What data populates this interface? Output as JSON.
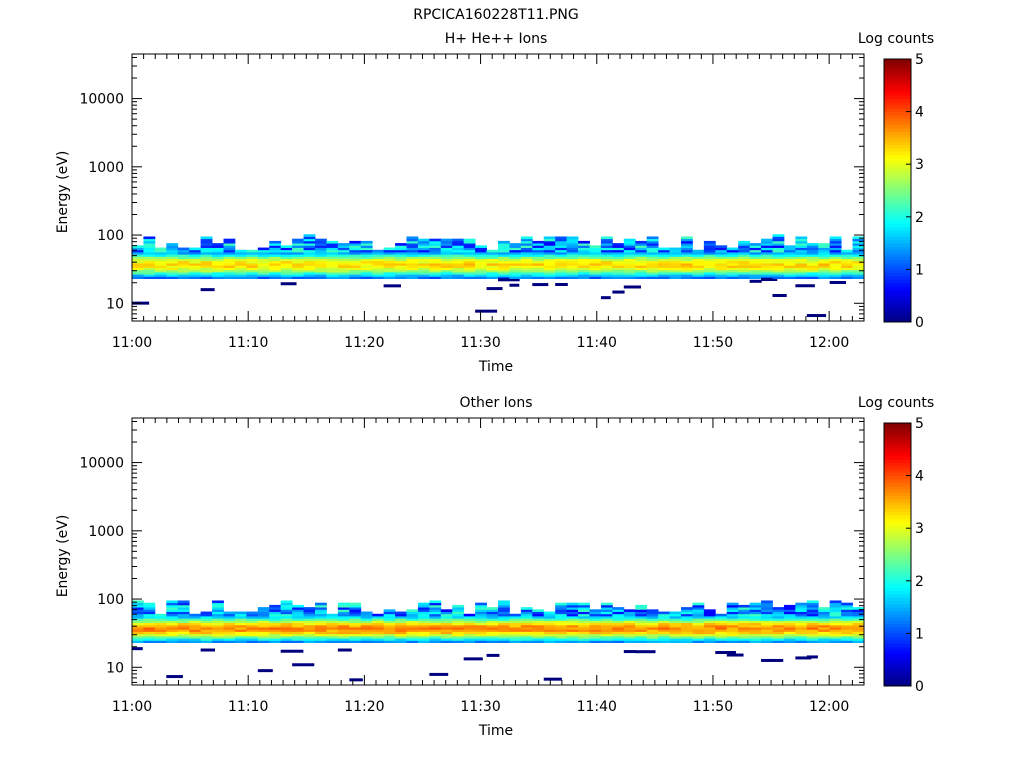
{
  "figure_title": "RPCICA160228T11.PNG",
  "colormap": [
    "#00007f",
    "#0000ff",
    "#007fff",
    "#00ffff",
    "#7fff7f",
    "#ffff00",
    "#ff7f00",
    "#ff0000",
    "#7f0000"
  ],
  "chart_data": [
    {
      "type": "heatmap",
      "title": "H+ He++ Ions",
      "xlabel": "Time",
      "ylabel": "Energy (eV)",
      "x_range": [
        "11:00",
        "12:03"
      ],
      "x_ticks": [
        "11:00",
        "11:10",
        "11:20",
        "11:30",
        "11:40",
        "11:50",
        "12:00"
      ],
      "y_scale": "log",
      "y_range": [
        5.5,
        45000
      ],
      "y_ticks": [
        10,
        100,
        1000,
        10000
      ],
      "y_tick_labels": [
        "10",
        "100",
        "1000",
        "10000"
      ],
      "colorbar": {
        "label": "Log counts",
        "range": [
          0,
          5
        ],
        "ticks": [
          "0",
          "1",
          "2",
          "3",
          "4",
          "5"
        ]
      },
      "band": {
        "peak_energy_eV": 37,
        "peak_log_counts": 3.3,
        "energy_span_eV": [
          23,
          100
        ]
      },
      "sparse_low_energy_counts": true
    },
    {
      "type": "heatmap",
      "title": "Other Ions",
      "xlabel": "Time",
      "ylabel": "Energy (eV)",
      "x_range": [
        "11:00",
        "12:03"
      ],
      "x_ticks": [
        "11:00",
        "11:10",
        "11:20",
        "11:30",
        "11:40",
        "11:50",
        "12:00"
      ],
      "y_scale": "log",
      "y_range": [
        5.5,
        45000
      ],
      "y_ticks": [
        10,
        100,
        1000,
        10000
      ],
      "y_tick_labels": [
        "10",
        "100",
        "1000",
        "10000"
      ],
      "colorbar": {
        "label": "Log counts",
        "range": [
          0,
          5
        ],
        "ticks": [
          "0",
          "1",
          "2",
          "3",
          "4",
          "5"
        ]
      },
      "band": {
        "peak_energy_eV": 37,
        "peak_log_counts": 3.7,
        "energy_span_eV": [
          23,
          100
        ]
      },
      "sparse_low_energy_counts": true
    }
  ]
}
